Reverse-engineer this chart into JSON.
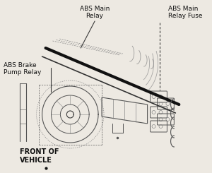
{
  "bg_color": "#ede9e2",
  "labels": {
    "abs_main_relay": "ABS Main\nRelay",
    "abs_brake_pump": "ABS Brake\nPump Relay",
    "abs_main_fuse": "ABS Main\nRelay Fuse",
    "front_of_vehicle": "FRONT OF\nVEHICLE"
  },
  "line_color": "#3a3a3a",
  "sketch_color": "#555555",
  "light_color": "#888888",
  "font_size": 6.5
}
